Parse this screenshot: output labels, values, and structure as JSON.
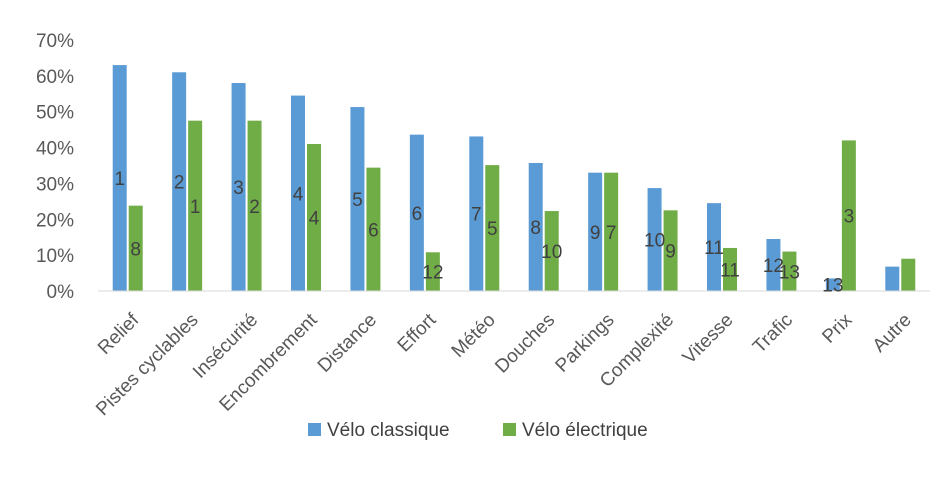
{
  "chart_data": {
    "type": "bar",
    "title": "",
    "xlabel": "",
    "ylabel": "",
    "ylim": [
      0,
      0.7
    ],
    "yticks": [
      "0%",
      "10%",
      "20%",
      "30%",
      "40%",
      "50%",
      "60%",
      "70%"
    ],
    "grid": false,
    "legend_position": "bottom",
    "categories": [
      "Relief",
      "Pistes cyclables",
      "Insécurité",
      "Encombrement",
      "Distance",
      "Effort",
      "Météo",
      "Douches",
      "Parkings",
      "Complexité",
      "Vitesse",
      "Trafic",
      "Prix",
      "Autre"
    ],
    "series": [
      {
        "name": "Vélo classique",
        "color": "#5B9BD5",
        "values": [
          0.63,
          0.61,
          0.58,
          0.545,
          0.513,
          0.436,
          0.431,
          0.357,
          0.33,
          0.287,
          0.245,
          0.145,
          0.035,
          0.068
        ],
        "labels": [
          "1",
          "2",
          "3",
          "4",
          "5",
          "6",
          "7",
          "8",
          "9",
          "10",
          "11",
          "12",
          "13",
          ""
        ]
      },
      {
        "name": "Vélo électrique",
        "color": "#70AD47",
        "values": [
          0.238,
          0.475,
          0.475,
          0.41,
          0.344,
          0.108,
          0.351,
          0.223,
          0.33,
          0.225,
          0.12,
          0.11,
          0.42,
          0.09
        ],
        "labels": [
          "8",
          "1",
          "2",
          "4",
          "6",
          "12",
          "5",
          "10",
          "7",
          "9",
          "11",
          "13",
          "3",
          ""
        ]
      }
    ]
  }
}
